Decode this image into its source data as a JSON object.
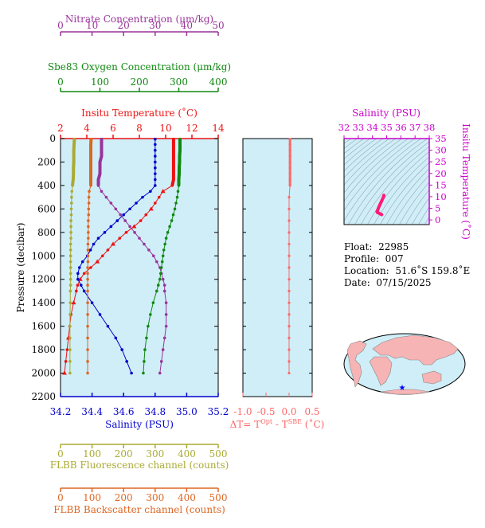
{
  "meta_info": {
    "float_label": "Float:",
    "float_value": "22985",
    "profile_label": "Profile:",
    "profile_value": "007",
    "location_label": "Location:",
    "location_value": "51.6˚S  159.8˚E",
    "date_label": "Date:",
    "date_value": "07/15/2025"
  },
  "colors": {
    "nitrate": "#993399",
    "oxygen": "#118811",
    "temperature": "#ee1111",
    "salinity": "#0000cc",
    "fluorescence": "#aaaa33",
    "backscatter": "#dd6622",
    "dt": "#ff6666",
    "ts_axis": "#cc00cc",
    "panel_bg": "#cfeef8"
  },
  "chart_data": [
    {
      "type": "line",
      "title": "",
      "ylabel": "Pressure (decibar)",
      "ylim": [
        2200,
        0
      ],
      "y_ticks": [
        "0",
        "200",
        "400",
        "600",
        "800",
        "1000",
        "1200",
        "1400",
        "1600",
        "1800",
        "2000",
        "2200"
      ],
      "axes": {
        "nitrate": {
          "label": "Nitrate Concentration (μm/kg)",
          "lim": [
            0,
            50
          ],
          "ticks": [
            "0",
            "10",
            "20",
            "30",
            "40",
            "50"
          ]
        },
        "oxygen": {
          "label": "Sbe83 Oxygen Concentration (μm/kg)",
          "lim": [
            0,
            400
          ],
          "ticks": [
            "0",
            "100",
            "200",
            "300",
            "400"
          ]
        },
        "temperature": {
          "label": "Insitu Temperature (˚C)",
          "lim": [
            2,
            14
          ],
          "ticks": [
            "2",
            "4",
            "6",
            "8",
            "10",
            "12",
            "14"
          ]
        },
        "salinity": {
          "label": "Salinity (PSU)",
          "lim": [
            34.2,
            35.2
          ],
          "ticks": [
            "34.2",
            "34.4",
            "34.6",
            "34.8",
            "35.0",
            "35.2"
          ]
        },
        "fluorescence": {
          "label": "FLBB Fluorescence channel (counts)",
          "lim": [
            0,
            500
          ],
          "ticks": [
            "0",
            "100",
            "200",
            "300",
            "400",
            "500"
          ]
        },
        "backscatter": {
          "label": "FLBB Backscatter channel (counts)",
          "lim": [
            0,
            500
          ],
          "ticks": [
            "0",
            "100",
            "200",
            "300",
            "400",
            "500"
          ]
        }
      },
      "series": [
        {
          "key": "temperature",
          "pressure": [
            5,
            50,
            100,
            150,
            200,
            250,
            300,
            350,
            400,
            450,
            500,
            550,
            600,
            650,
            700,
            750,
            800,
            850,
            900,
            950,
            1000,
            1050,
            1100,
            1150,
            1200,
            1250,
            1300,
            1400,
            1500,
            1600,
            1700,
            1800,
            1900,
            2000
          ],
          "values": [
            10.6,
            10.6,
            10.6,
            10.6,
            10.6,
            10.6,
            10.6,
            10.6,
            10.5,
            9.8,
            9.5,
            9.2,
            8.9,
            8.5,
            8.1,
            7.6,
            7.0,
            6.5,
            6.0,
            5.6,
            5.2,
            4.8,
            4.3,
            3.8,
            3.5,
            3.3,
            3.2,
            3.0,
            2.8,
            2.7,
            2.6,
            2.5,
            2.4,
            2.3
          ]
        },
        {
          "key": "salinity",
          "pressure": [
            5,
            50,
            100,
            150,
            200,
            250,
            300,
            350,
            400,
            450,
            500,
            550,
            600,
            650,
            700,
            750,
            800,
            850,
            900,
            950,
            1000,
            1050,
            1100,
            1150,
            1200,
            1250,
            1300,
            1400,
            1500,
            1600,
            1700,
            1800,
            1900,
            2000
          ],
          "values": [
            34.8,
            34.8,
            34.8,
            34.8,
            34.8,
            34.8,
            34.8,
            34.8,
            34.8,
            34.77,
            34.72,
            34.68,
            34.64,
            34.6,
            34.56,
            34.52,
            34.48,
            34.44,
            34.41,
            34.39,
            34.37,
            34.34,
            34.32,
            34.31,
            34.31,
            34.33,
            34.35,
            34.4,
            34.45,
            34.5,
            34.55,
            34.59,
            34.62,
            34.65
          ]
        },
        {
          "key": "nitrate",
          "pressure": [
            5,
            50,
            100,
            150,
            200,
            250,
            300,
            350,
            400,
            450,
            500,
            550,
            600,
            650,
            700,
            750,
            800,
            850,
            900,
            950,
            1000,
            1050,
            1100,
            1150,
            1200,
            1250,
            1300,
            1400,
            1500,
            1600,
            1700,
            1800,
            1900,
            2000
          ],
          "values": [
            13,
            13,
            13,
            13,
            12.5,
            12.5,
            12.5,
            12,
            12,
            13,
            14.5,
            16,
            17.5,
            19,
            20.5,
            22,
            23.5,
            25,
            26.5,
            28,
            29.5,
            30.5,
            31.5,
            32,
            32.5,
            33,
            33,
            33.5,
            33.5,
            33.5,
            33,
            32.5,
            32,
            31.5
          ]
        },
        {
          "key": "oxygen",
          "pressure": [
            5,
            50,
            100,
            150,
            200,
            250,
            300,
            350,
            400,
            450,
            500,
            550,
            600,
            650,
            700,
            750,
            800,
            850,
            900,
            950,
            1000,
            1050,
            1100,
            1150,
            1200,
            1250,
            1300,
            1400,
            1500,
            1600,
            1700,
            1800,
            1900,
            2000
          ],
          "values": [
            303,
            303,
            303,
            302,
            302,
            301,
            301,
            300,
            300,
            298,
            296,
            293,
            290,
            286,
            282,
            277,
            272,
            268,
            265,
            262,
            260,
            258,
            256,
            254,
            252,
            248,
            244,
            235,
            228,
            222,
            218,
            214,
            212,
            210
          ]
        },
        {
          "key": "fluorescence",
          "pressure": [
            5,
            50,
            100,
            150,
            200,
            250,
            300,
            350,
            400,
            450,
            500,
            550,
            600,
            650,
            700,
            750,
            800,
            850,
            900,
            950,
            1000,
            1050,
            1100,
            1150,
            1200,
            1250,
            1300,
            1400,
            1500,
            1600,
            1700,
            1800,
            1900,
            2000
          ],
          "values": [
            44,
            43,
            42,
            42,
            42,
            41,
            41,
            40,
            38,
            36,
            35,
            35,
            34,
            34,
            33,
            33,
            33,
            33,
            32,
            32,
            32,
            32,
            32,
            32,
            32,
            32,
            31,
            31,
            30,
            30,
            30,
            30,
            30,
            30
          ]
        },
        {
          "key": "backscatter",
          "pressure": [
            5,
            50,
            100,
            150,
            200,
            250,
            300,
            350,
            400,
            450,
            500,
            550,
            600,
            650,
            700,
            750,
            800,
            850,
            900,
            950,
            1000,
            1050,
            1100,
            1150,
            1200,
            1250,
            1300,
            1400,
            1500,
            1600,
            1700,
            1800,
            1900,
            2000
          ],
          "values": [
            97,
            96,
            96,
            96,
            96,
            96,
            96,
            96,
            96,
            91,
            90,
            90,
            89,
            89,
            88,
            88,
            88,
            88,
            87,
            87,
            87,
            87,
            86,
            86,
            86,
            86,
            86,
            86,
            86,
            86,
            86,
            86,
            86,
            86
          ]
        }
      ]
    },
    {
      "type": "line",
      "xlabel": "ΔT= T",
      "xlabel_sup1": "Opt",
      "xlabel_mid": " - T",
      "xlabel_sup2": "SBE",
      "xlabel_end": " (˚C)",
      "xlim": [
        -1.0,
        0.5
      ],
      "ylim": [
        2200,
        0
      ],
      "x_ticks": [
        "-1.0",
        "-0.5",
        "0.0",
        "0.5"
      ],
      "series": [
        {
          "name": "",
          "pressure": [
            5,
            50,
            100,
            150,
            200,
            250,
            300,
            350,
            400,
            500,
            600,
            700,
            800,
            900,
            1000,
            1100,
            1200,
            1300,
            1400,
            1500,
            1600,
            1700,
            1800,
            1900,
            2000
          ],
          "values": [
            0.02,
            0.02,
            0.02,
            0.02,
            0.02,
            0.02,
            0.02,
            0.02,
            0.02,
            0.0,
            0.0,
            0.0,
            0.0,
            0.0,
            0.0,
            0.0,
            0.0,
            0.0,
            0.0,
            0.0,
            0.0,
            0.0,
            0.0,
            0.0,
            0.0
          ]
        }
      ]
    },
    {
      "type": "scatter",
      "xlabel": "Salinity (PSU)",
      "ylabel": "Insitu Temperature (˚C)",
      "xlim": [
        32,
        38
      ],
      "ylim": [
        -2,
        35
      ],
      "x_ticks": [
        "32",
        "33",
        "34",
        "35",
        "36",
        "37",
        "38"
      ],
      "y_ticks": [
        "0",
        "5",
        "10",
        "15",
        "20",
        "25",
        "30",
        "35"
      ],
      "points": [
        {
          "x": 34.8,
          "y": 10.6
        },
        {
          "x": 34.79,
          "y": 10.2
        },
        {
          "x": 34.75,
          "y": 9.5
        },
        {
          "x": 34.68,
          "y": 8.6
        },
        {
          "x": 34.6,
          "y": 7.5
        },
        {
          "x": 34.52,
          "y": 6.5
        },
        {
          "x": 34.44,
          "y": 5.4
        },
        {
          "x": 34.38,
          "y": 4.4
        },
        {
          "x": 34.32,
          "y": 3.6
        },
        {
          "x": 34.35,
          "y": 3.2
        },
        {
          "x": 34.45,
          "y": 2.9
        },
        {
          "x": 34.55,
          "y": 2.6
        },
        {
          "x": 34.65,
          "y": 2.3
        }
      ]
    }
  ]
}
